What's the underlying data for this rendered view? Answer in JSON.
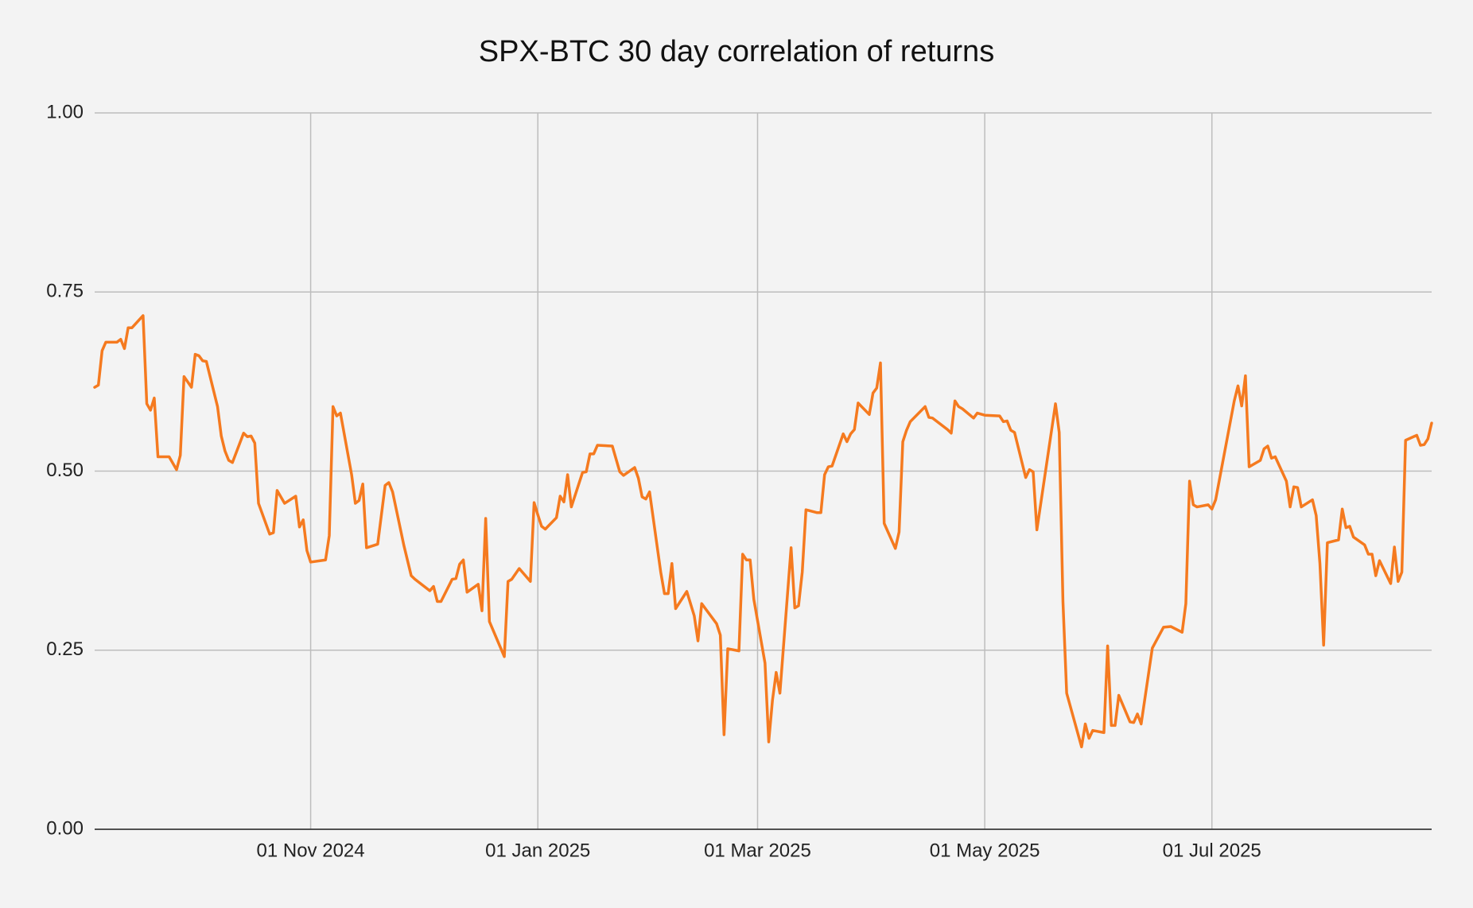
{
  "chart_data": {
    "type": "line",
    "title": "SPX-BTC 30 day correlation of returns",
    "color": "#f57a1f",
    "grid": true,
    "xlim": [
      "2024-09-04",
      "2025-08-29"
    ],
    "xticks": [
      {
        "value": "2024-11-01",
        "label": "01 Nov 2024"
      },
      {
        "value": "2025-01-01",
        "label": "01 Jan 2025"
      },
      {
        "value": "2025-03-01",
        "label": "01 Mar 2025"
      },
      {
        "value": "2025-05-01",
        "label": "01 May 2025"
      },
      {
        "value": "2025-07-01",
        "label": "01 Jul 2025"
      }
    ],
    "ylim": [
      0,
      1
    ],
    "yticks": [
      {
        "value": 0,
        "label": "0.00"
      },
      {
        "value": 0.25,
        "label": "0.25"
      },
      {
        "value": 0.5,
        "label": "0.50"
      },
      {
        "value": 0.75,
        "label": "0.75"
      },
      {
        "value": 1,
        "label": "1.00"
      }
    ],
    "x": [
      "2024-09-04",
      "2024-09-05",
      "2024-09-06",
      "2024-09-07",
      "2024-09-10",
      "2024-09-11",
      "2024-09-12",
      "2024-09-13",
      "2024-09-14",
      "2024-09-17",
      "2024-09-18",
      "2024-09-19",
      "2024-09-20",
      "2024-09-21",
      "2024-09-24",
      "2024-09-26",
      "2024-09-27",
      "2024-09-28",
      "2024-09-30",
      "2024-10-01",
      "2024-10-02",
      "2024-10-03",
      "2024-10-04",
      "2024-10-07",
      "2024-10-08",
      "2024-10-09",
      "2024-10-10",
      "2024-10-11",
      "2024-10-14",
      "2024-10-15",
      "2024-10-16",
      "2024-10-17",
      "2024-10-18",
      "2024-10-21",
      "2024-10-22",
      "2024-10-23",
      "2024-10-25",
      "2024-10-28",
      "2024-10-29",
      "2024-10-30",
      "2024-10-31",
      "2024-11-01",
      "2024-11-05",
      "2024-11-06",
      "2024-11-07",
      "2024-11-08",
      "2024-11-09",
      "2024-11-12",
      "2024-11-13",
      "2024-11-14",
      "2024-11-15",
      "2024-11-16",
      "2024-11-19",
      "2024-11-21",
      "2024-11-22",
      "2024-11-23",
      "2024-11-26",
      "2024-11-28",
      "2024-11-29",
      "2024-12-03",
      "2024-12-04",
      "2024-12-05",
      "2024-12-06",
      "2024-12-09",
      "2024-12-10",
      "2024-12-11",
      "2024-12-12",
      "2024-12-13",
      "2024-12-16",
      "2024-12-17",
      "2024-12-18",
      "2024-12-19",
      "2024-12-23",
      "2024-12-24",
      "2024-12-25",
      "2024-12-27",
      "2024-12-30",
      "2024-12-31",
      "2025-01-01",
      "2025-01-02",
      "2025-01-03",
      "2025-01-06",
      "2025-01-07",
      "2025-01-08",
      "2025-01-09",
      "2025-01-10",
      "2025-01-13",
      "2025-01-14",
      "2025-01-15",
      "2025-01-16",
      "2025-01-17",
      "2025-01-21",
      "2025-01-23",
      "2025-01-24",
      "2025-01-27",
      "2025-01-28",
      "2025-01-29",
      "2025-01-30",
      "2025-01-31",
      "2025-02-03",
      "2025-02-04",
      "2025-02-05",
      "2025-02-06",
      "2025-02-07",
      "2025-02-10",
      "2025-02-11",
      "2025-02-12",
      "2025-02-13",
      "2025-02-14",
      "2025-02-18",
      "2025-02-19",
      "2025-02-20",
      "2025-02-21",
      "2025-02-24",
      "2025-02-25",
      "2025-02-26",
      "2025-02-27",
      "2025-02-28",
      "2025-03-03",
      "2025-03-04",
      "2025-03-05",
      "2025-03-06",
      "2025-03-07",
      "2025-03-10",
      "2025-03-11",
      "2025-03-12",
      "2025-03-13",
      "2025-03-14",
      "2025-03-17",
      "2025-03-18",
      "2025-03-19",
      "2025-03-20",
      "2025-03-21",
      "2025-03-24",
      "2025-03-25",
      "2025-03-26",
      "2025-03-27",
      "2025-03-28",
      "2025-03-31",
      "2025-04-01",
      "2025-04-02",
      "2025-04-03",
      "2025-04-04",
      "2025-04-07",
      "2025-04-08",
      "2025-04-09",
      "2025-04-10",
      "2025-04-11",
      "2025-04-15",
      "2025-04-16",
      "2025-04-17",
      "2025-04-21",
      "2025-04-22",
      "2025-04-23",
      "2025-04-24",
      "2025-04-25",
      "2025-04-28",
      "2025-04-29",
      "2025-05-01",
      "2025-05-05",
      "2025-05-06",
      "2025-05-07",
      "2025-05-08",
      "2025-05-09",
      "2025-05-12",
      "2025-05-13",
      "2025-05-14",
      "2025-05-15",
      "2025-05-20",
      "2025-05-21",
      "2025-05-22",
      "2025-05-23",
      "2025-05-27",
      "2025-05-28",
      "2025-05-29",
      "2025-05-30",
      "2025-06-02",
      "2025-06-03",
      "2025-06-04",
      "2025-06-05",
      "2025-06-06",
      "2025-06-09",
      "2025-06-10",
      "2025-06-11",
      "2025-06-12",
      "2025-06-15",
      "2025-06-18",
      "2025-06-20",
      "2025-06-23",
      "2025-06-24",
      "2025-06-25",
      "2025-06-26",
      "2025-06-27",
      "2025-06-30",
      "2025-07-01",
      "2025-07-02",
      "2025-07-07",
      "2025-07-08",
      "2025-07-09",
      "2025-07-10",
      "2025-07-11",
      "2025-07-14",
      "2025-07-15",
      "2025-07-16",
      "2025-07-17",
      "2025-07-18",
      "2025-07-21",
      "2025-07-22",
      "2025-07-23",
      "2025-07-24",
      "2025-07-25",
      "2025-07-28",
      "2025-07-29",
      "2025-07-30",
      "2025-07-31",
      "2025-08-01",
      "2025-08-04",
      "2025-08-05",
      "2025-08-06",
      "2025-08-07",
      "2025-08-08",
      "2025-08-11",
      "2025-08-12",
      "2025-08-13",
      "2025-08-14",
      "2025-08-15",
      "2025-08-18",
      "2025-08-19",
      "2025-08-20",
      "2025-08-21",
      "2025-08-22",
      "2025-08-25",
      "2025-08-26",
      "2025-08-27",
      "2025-08-28",
      "2025-08-29"
    ],
    "values": [
      0.617,
      0.62,
      0.668,
      0.68,
      0.68,
      0.684,
      0.671,
      0.7,
      0.7,
      0.717,
      0.594,
      0.585,
      0.602,
      0.52,
      0.52,
      0.502,
      0.522,
      0.632,
      0.617,
      0.663,
      0.661,
      0.654,
      0.653,
      0.59,
      0.549,
      0.528,
      0.515,
      0.512,
      0.553,
      0.548,
      0.549,
      0.539,
      0.455,
      0.412,
      0.414,
      0.473,
      0.455,
      0.465,
      0.422,
      0.432,
      0.389,
      0.373,
      0.376,
      0.41,
      0.59,
      0.577,
      0.581,
      0.495,
      0.455,
      0.459,
      0.482,
      0.393,
      0.398,
      0.48,
      0.484,
      0.471,
      0.397,
      0.354,
      0.349,
      0.333,
      0.339,
      0.318,
      0.318,
      0.349,
      0.35,
      0.37,
      0.376,
      0.331,
      0.342,
      0.305,
      0.434,
      0.29,
      0.241,
      0.346,
      0.349,
      0.364,
      0.346,
      0.456,
      0.439,
      0.423,
      0.419,
      0.435,
      0.465,
      0.457,
      0.495,
      0.45,
      0.498,
      0.499,
      0.524,
      0.524,
      0.536,
      0.535,
      0.499,
      0.494,
      0.505,
      0.49,
      0.464,
      0.461,
      0.471,
      0.359,
      0.329,
      0.329,
      0.371,
      0.308,
      0.332,
      0.315,
      0.298,
      0.263,
      0.315,
      0.287,
      0.271,
      0.132,
      0.252,
      0.249,
      0.384,
      0.376,
      0.376,
      0.321,
      0.232,
      0.122,
      0.18,
      0.219,
      0.19,
      0.393,
      0.309,
      0.312,
      0.359,
      0.446,
      0.442,
      0.442,
      0.495,
      0.506,
      0.507,
      0.552,
      0.541,
      0.552,
      0.558,
      0.595,
      0.579,
      0.609,
      0.616,
      0.651,
      0.427,
      0.392,
      0.415,
      0.541,
      0.557,
      0.569,
      0.59,
      0.575,
      0.574,
      0.558,
      0.553,
      0.598,
      0.59,
      0.587,
      0.574,
      0.581,
      0.578,
      0.577,
      0.569,
      0.57,
      0.557,
      0.554,
      0.491,
      0.502,
      0.499,
      0.418,
      0.594,
      0.554,
      0.318,
      0.19,
      0.115,
      0.147,
      0.127,
      0.138,
      0.135,
      0.256,
      0.145,
      0.145,
      0.187,
      0.15,
      0.149,
      0.161,
      0.147,
      0.253,
      0.282,
      0.283,
      0.275,
      0.315,
      0.486,
      0.453,
      0.45,
      0.453,
      0.447,
      0.46,
      0.598,
      0.619,
      0.591,
      0.633,
      0.506,
      0.515,
      0.531,
      0.535,
      0.518,
      0.52,
      0.486,
      0.45,
      0.478,
      0.477,
      0.45,
      0.46,
      0.438,
      0.371,
      0.257,
      0.4,
      0.404,
      0.447,
      0.421,
      0.423,
      0.408,
      0.397,
      0.384,
      0.384,
      0.354,
      0.375,
      0.343,
      0.394,
      0.346,
      0.359,
      0.543,
      0.55,
      0.536,
      0.537,
      0.545,
      0.567
    ]
  }
}
